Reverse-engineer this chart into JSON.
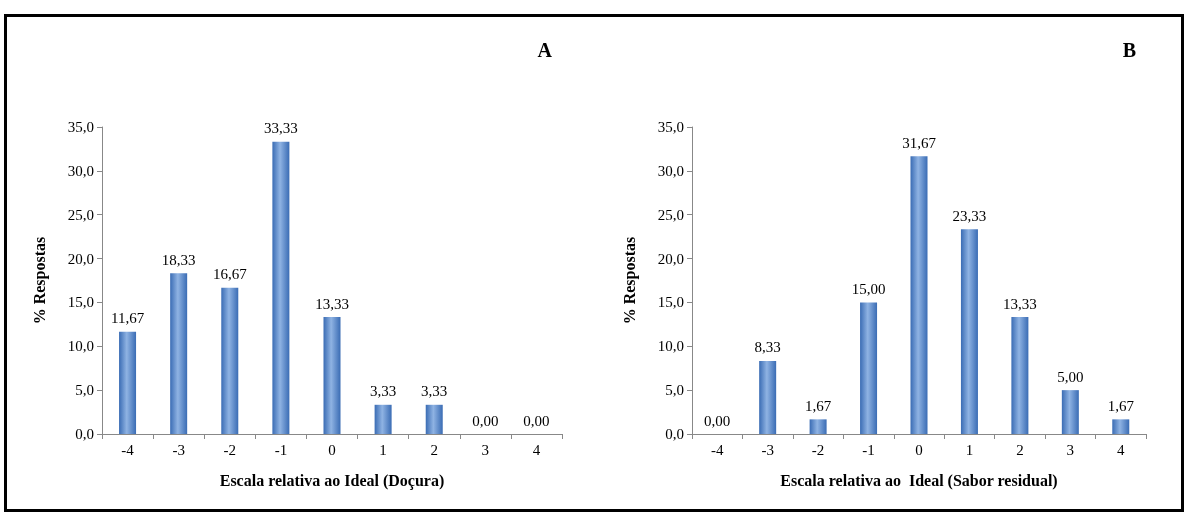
{
  "chart_data": [
    {
      "type": "bar",
      "title": "A",
      "categories": [
        "-4",
        "-3",
        "-2",
        "-1",
        "0",
        "1",
        "2",
        "3",
        "4"
      ],
      "values": [
        11.67,
        18.33,
        16.67,
        33.33,
        13.33,
        3.33,
        3.33,
        0,
        0
      ],
      "value_labels": [
        "11,67",
        "18,33",
        "16,67",
        "33,33",
        "13,33",
        "3,33",
        "3,33",
        "0,00",
        "0,00"
      ],
      "color": "#3a6cb4",
      "xlabel": "Escala relativa ao Ideal (Doçura)",
      "ylabel": "% Respostas",
      "ylim": [
        0,
        35
      ],
      "yticks": [
        {
          "value": 0,
          "label": "0,0"
        },
        {
          "value": 5,
          "label": "5,0"
        },
        {
          "value": 10,
          "label": "10,0"
        },
        {
          "value": 15,
          "label": "15,0"
        },
        {
          "value": 20,
          "label": "20,0"
        },
        {
          "value": 25,
          "label": "25,0"
        },
        {
          "value": 30,
          "label": "30,0"
        },
        {
          "value": 35,
          "label": "35,0"
        }
      ],
      "grid": false
    },
    {
      "type": "bar",
      "title": "B",
      "categories": [
        "-4",
        "-3",
        "-2",
        "-1",
        "0",
        "1",
        "2",
        "3",
        "4"
      ],
      "values": [
        0,
        8.33,
        1.67,
        15,
        31.67,
        23.33,
        13.33,
        5,
        1.67
      ],
      "value_labels": [
        "0,00",
        "8,33",
        "1,67",
        "15,00",
        "31,67",
        "23,33",
        "13,33",
        "5,00",
        "1,67"
      ],
      "color": "#3a6cb4",
      "xlabel": "Escala relativa ao  Ideal (Sabor residual)",
      "ylabel": "% Respostas",
      "ylim": [
        0,
        35
      ],
      "yticks": [
        {
          "value": 0,
          "label": "0,0"
        },
        {
          "value": 5,
          "label": "5,0"
        },
        {
          "value": 10,
          "label": "10,0"
        },
        {
          "value": 15,
          "label": "15,0"
        },
        {
          "value": 20,
          "label": "20,0"
        },
        {
          "value": 25,
          "label": "25,0"
        },
        {
          "value": 30,
          "label": "30,0"
        },
        {
          "value": 35,
          "label": "35,0"
        }
      ],
      "grid": false
    }
  ]
}
